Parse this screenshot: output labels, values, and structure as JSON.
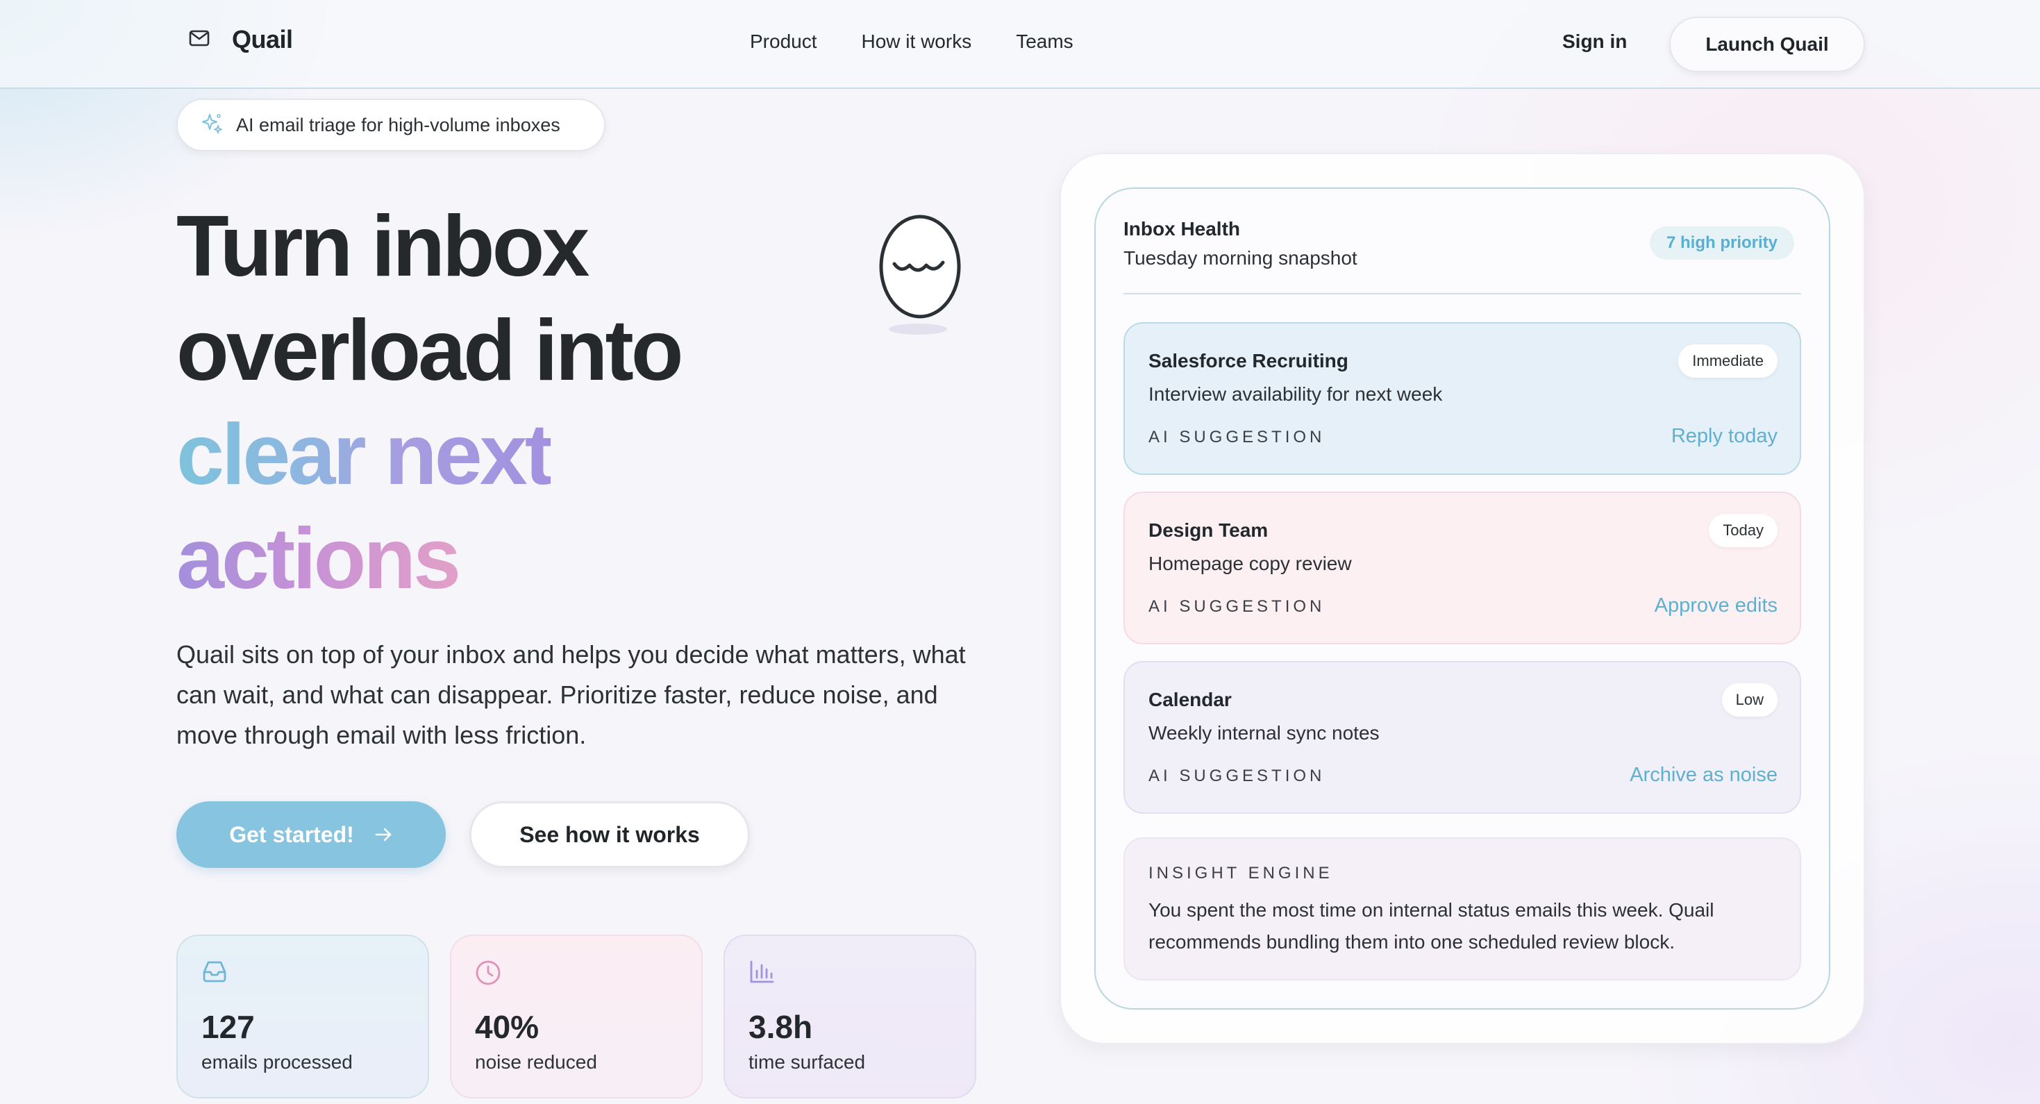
{
  "header": {
    "brand_name": "Quail",
    "nav": [
      "Product",
      "How it works",
      "Teams"
    ],
    "sign_in": "Sign in",
    "launch": "Launch Quail"
  },
  "hero": {
    "tag": "AI email triage for high-volume inboxes",
    "headline_line1": "Turn inbox",
    "headline_line2": "overload into",
    "headline_grad1": "clear next",
    "headline_grad2": "actions",
    "description": "Quail sits on top of your inbox and helps you decide what matters, what can wait, and what can disappear. Prioritize faster, reduce noise, and move through email with less friction.",
    "cta_primary": "Get started!",
    "cta_secondary": "See how it works"
  },
  "stats": [
    {
      "icon": "inbox-icon",
      "value": "127",
      "label": "emails processed"
    },
    {
      "icon": "clock-icon",
      "value": "40%",
      "label": "noise reduced"
    },
    {
      "icon": "bar-chart-icon",
      "value": "3.8h",
      "label": "time surfaced"
    }
  ],
  "panel": {
    "title": "Inbox Health",
    "subtitle": "Tuesday morning snapshot",
    "badge": "7 high priority",
    "emails": [
      {
        "from": "Salesforce Recruiting",
        "subject": "Interview availability for next week",
        "priority": "Immediate",
        "ai_label": "AI SUGGESTION",
        "action": "Reply today"
      },
      {
        "from": "Design Team",
        "subject": "Homepage copy review",
        "priority": "Today",
        "ai_label": "AI SUGGESTION",
        "action": "Approve edits"
      },
      {
        "from": "Calendar",
        "subject": "Weekly internal sync notes",
        "priority": "Low",
        "ai_label": "AI SUGGESTION",
        "action": "Archive as noise"
      }
    ],
    "insight": {
      "label": "INSIGHT ENGINE",
      "text": "You spent the most time on internal status emails this week. Quail recommends bundling them into one scheduled review block."
    }
  },
  "colors": {
    "accent_blue": "#86c4df",
    "link_blue": "#5fb0cf",
    "text_dark": "#25292c"
  }
}
